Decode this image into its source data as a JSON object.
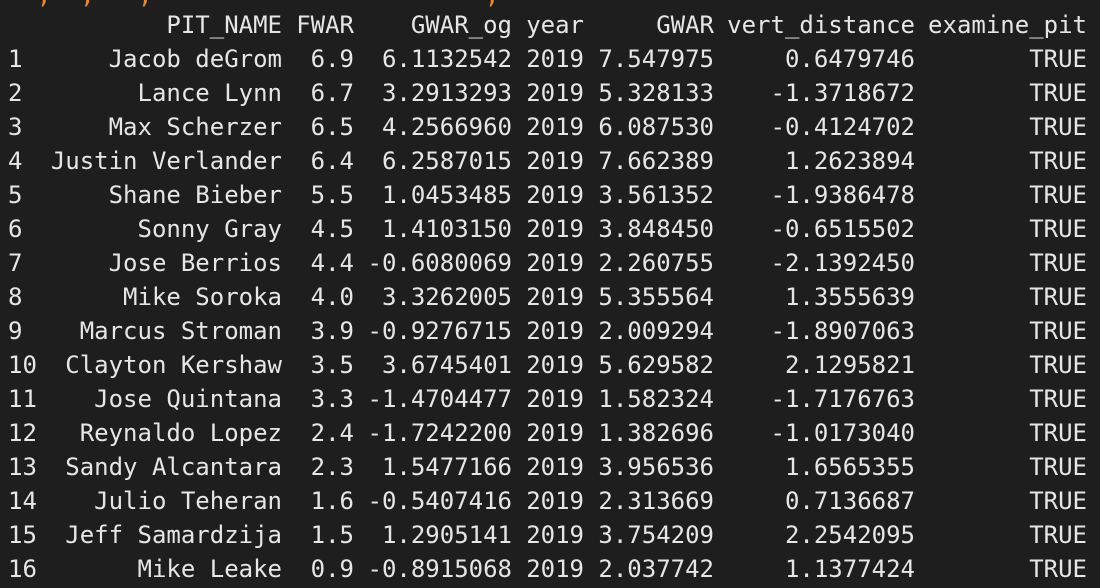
{
  "console": {
    "command_fragment": "  ,  ,   ,                       ,  ",
    "bottom_fragment": "."
  },
  "table": {
    "columns": [
      "PIT_NAME",
      "FWAR",
      "GWAR_og",
      "year",
      "GWAR",
      "vert_distance",
      "examine_pit"
    ],
    "rows": [
      {
        "idx": "1",
        "name": "Jacob deGrom",
        "fwar": "6.9",
        "gwar_og": "6.1132542",
        "year": "2019",
        "gwar": "7.547975",
        "vert": "0.6479746",
        "examine": "TRUE"
      },
      {
        "idx": "2",
        "name": "Lance Lynn",
        "fwar": "6.7",
        "gwar_og": "3.2913293",
        "year": "2019",
        "gwar": "5.328133",
        "vert": "-1.3718672",
        "examine": "TRUE"
      },
      {
        "idx": "3",
        "name": "Max Scherzer",
        "fwar": "6.5",
        "gwar_og": "4.2566960",
        "year": "2019",
        "gwar": "6.087530",
        "vert": "-0.4124702",
        "examine": "TRUE"
      },
      {
        "idx": "4",
        "name": "Justin Verlander",
        "fwar": "6.4",
        "gwar_og": "6.2587015",
        "year": "2019",
        "gwar": "7.662389",
        "vert": "1.2623894",
        "examine": "TRUE"
      },
      {
        "idx": "5",
        "name": "Shane Bieber",
        "fwar": "5.5",
        "gwar_og": "1.0453485",
        "year": "2019",
        "gwar": "3.561352",
        "vert": "-1.9386478",
        "examine": "TRUE"
      },
      {
        "idx": "6",
        "name": "Sonny Gray",
        "fwar": "4.5",
        "gwar_og": "1.4103150",
        "year": "2019",
        "gwar": "3.848450",
        "vert": "-0.6515502",
        "examine": "TRUE"
      },
      {
        "idx": "7",
        "name": "Jose Berrios",
        "fwar": "4.4",
        "gwar_og": "-0.6080069",
        "year": "2019",
        "gwar": "2.260755",
        "vert": "-2.1392450",
        "examine": "TRUE"
      },
      {
        "idx": "8",
        "name": "Mike Soroka",
        "fwar": "4.0",
        "gwar_og": "3.3262005",
        "year": "2019",
        "gwar": "5.355564",
        "vert": "1.3555639",
        "examine": "TRUE"
      },
      {
        "idx": "9",
        "name": "Marcus Stroman",
        "fwar": "3.9",
        "gwar_og": "-0.9276715",
        "year": "2019",
        "gwar": "2.009294",
        "vert": "-1.8907063",
        "examine": "TRUE"
      },
      {
        "idx": "10",
        "name": "Clayton Kershaw",
        "fwar": "3.5",
        "gwar_og": "3.6745401",
        "year": "2019",
        "gwar": "5.629582",
        "vert": "2.1295821",
        "examine": "TRUE"
      },
      {
        "idx": "11",
        "name": "Jose Quintana",
        "fwar": "3.3",
        "gwar_og": "-1.4704477",
        "year": "2019",
        "gwar": "1.582324",
        "vert": "-1.7176763",
        "examine": "TRUE"
      },
      {
        "idx": "12",
        "name": "Reynaldo Lopez",
        "fwar": "2.4",
        "gwar_og": "-1.7242200",
        "year": "2019",
        "gwar": "1.382696",
        "vert": "-1.0173040",
        "examine": "TRUE"
      },
      {
        "idx": "13",
        "name": "Sandy Alcantara",
        "fwar": "2.3",
        "gwar_og": "1.5477166",
        "year": "2019",
        "gwar": "3.956536",
        "vert": "1.6565355",
        "examine": "TRUE"
      },
      {
        "idx": "14",
        "name": "Julio Teheran",
        "fwar": "1.6",
        "gwar_og": "-0.5407416",
        "year": "2019",
        "gwar": "2.313669",
        "vert": "0.7136687",
        "examine": "TRUE"
      },
      {
        "idx": "15",
        "name": "Jeff Samardzija",
        "fwar": "1.5",
        "gwar_og": "1.2905141",
        "year": "2019",
        "gwar": "3.754209",
        "vert": "2.2542095",
        "examine": "TRUE"
      },
      {
        "idx": "16",
        "name": "Mike Leake",
        "fwar": "0.9",
        "gwar_og": "-0.8915068",
        "year": "2019",
        "gwar": "2.037742",
        "vert": "1.1377424",
        "examine": "TRUE"
      }
    ]
  },
  "colors": {
    "background": "#1e1e1e",
    "text": "#e6e6e6",
    "command": "#e8892b"
  }
}
